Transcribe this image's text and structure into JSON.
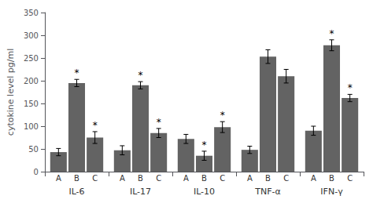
{
  "chart_data": {
    "type": "bar",
    "categories": [
      "IL-6",
      "IL-17",
      "IL-10",
      "TNF-α",
      "IFN-γ"
    ],
    "series": [
      {
        "name": "A",
        "values": [
          43,
          47,
          72,
          48,
          90
        ],
        "errors": [
          8,
          10,
          10,
          8,
          10
        ],
        "star_flags": [
          false,
          false,
          false,
          false,
          false
        ]
      },
      {
        "name": "B",
        "values": [
          195,
          190,
          35,
          253,
          278
        ],
        "errors": [
          8,
          8,
          10,
          15,
          12
        ],
        "star_flags": [
          true,
          true,
          true,
          false,
          true
        ]
      },
      {
        "name": "C",
        "values": [
          75,
          85,
          98,
          210,
          162
        ],
        "errors": [
          13,
          10,
          12,
          15,
          8
        ],
        "star_flags": [
          true,
          true,
          true,
          false,
          true
        ]
      }
    ],
    "annotation": "*",
    "color": "#636363",
    "ylabel": "cytokine level pg/ml",
    "ylim": [
      0,
      350
    ],
    "yticks": [
      0,
      50,
      100,
      150,
      200,
      250,
      300,
      350
    ],
    "grid": false
  }
}
